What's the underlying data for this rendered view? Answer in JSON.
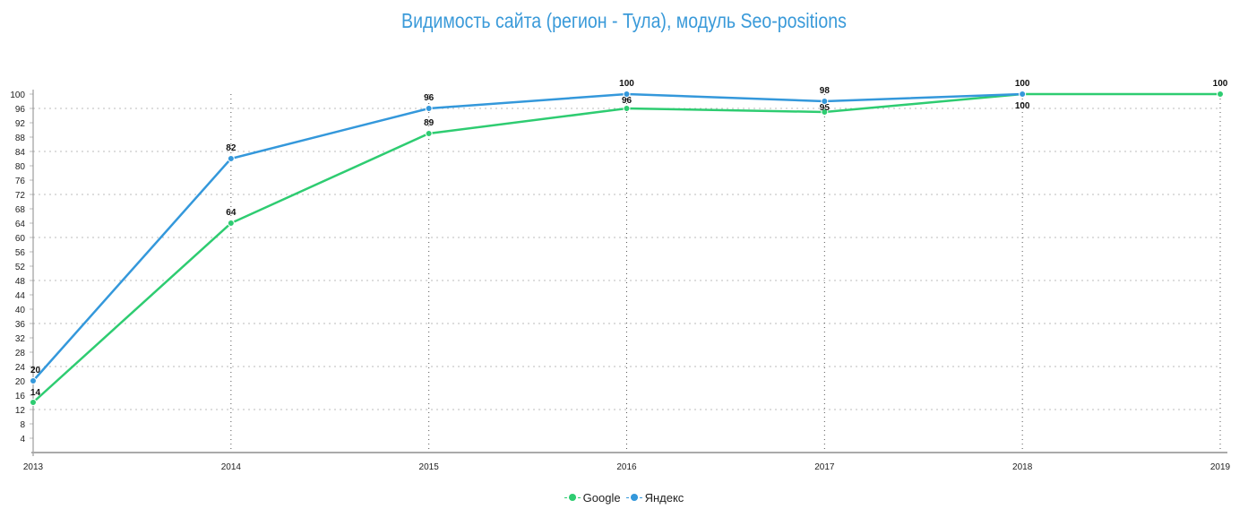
{
  "chart_data": {
    "type": "line",
    "title": "Видимость сайта (регион - Тула), модуль Seo-positions",
    "x": [
      "2013",
      "2014",
      "2015",
      "2016",
      "2017",
      "2018",
      "2019"
    ],
    "ylim": [
      0,
      100
    ],
    "yticks": [
      4,
      8,
      12,
      16,
      20,
      24,
      28,
      32,
      36,
      40,
      44,
      48,
      52,
      56,
      60,
      64,
      68,
      72,
      76,
      80,
      84,
      88,
      92,
      96,
      100
    ],
    "grid": true,
    "legend_position": "bottom-center",
    "series": [
      {
        "name": "Google",
        "color": "#2ecc71",
        "values": [
          14,
          64,
          89,
          96,
          95,
          100,
          100
        ]
      },
      {
        "name": "Яндекс",
        "color": "#3498db",
        "values": [
          20,
          82,
          96,
          100,
          98,
          100,
          null
        ]
      }
    ]
  }
}
